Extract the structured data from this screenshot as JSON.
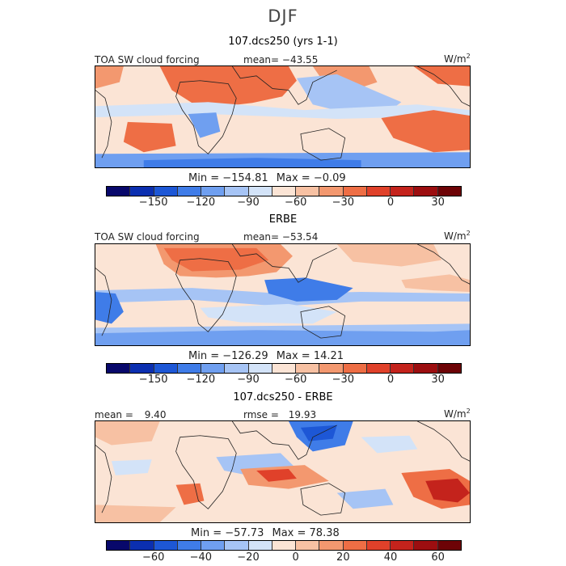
{
  "title": "DJF",
  "colors": {
    "scale": [
      "#08086b",
      "#0b2fb0",
      "#1d57d6",
      "#3f7ce8",
      "#6f9ff0",
      "#a6c4f5",
      "#d3e3f8",
      "#fbe4d5",
      "#f7c1a3",
      "#f3986f",
      "#ee6e45",
      "#e0412a",
      "#c4231c",
      "#9c0e10",
      "#6d0306"
    ],
    "coast": "#222222"
  },
  "panels": [
    {
      "title": "107.dcs250 (yrs 1-1)",
      "left_label": "TOA SW cloud forcing",
      "mean_label": "mean=",
      "mean_value": "-43.55",
      "units": "W/m",
      "units_exp": "2",
      "min_label": "Min =",
      "min_value": "-154.81",
      "max_label": "Max =",
      "max_value": "-0.09",
      "ticks": [
        "-150",
        "-120",
        "-90",
        "-60",
        "-30",
        "0",
        "30"
      ]
    },
    {
      "title": "ERBE",
      "left_label": "TOA SW cloud forcing",
      "mean_label": "mean=",
      "mean_value": "-53.54",
      "units": "W/m",
      "units_exp": "2",
      "min_label": "Min =",
      "min_value": "-126.29",
      "max_label": "Max =",
      "max_value": "14.21",
      "ticks": [
        "-150",
        "-120",
        "-90",
        "-60",
        "-30",
        "0",
        "30"
      ]
    },
    {
      "title": "107.dcs250 - ERBE",
      "left_label": "mean =",
      "left_value": "9.40",
      "mean_label": "rmse =",
      "mean_value": "19.93",
      "units": "W/m",
      "units_exp": "2",
      "min_label": "Min =",
      "min_value": "-57.73",
      "max_label": "Max =",
      "max_value": "78.38",
      "ticks": [
        "-60",
        "-40",
        "-20",
        "0",
        "20",
        "40",
        "60"
      ]
    }
  ],
  "chart_data": [
    {
      "type": "heatmap",
      "title": "107.dcs250 (yrs 1-1)",
      "field": "TOA SW cloud forcing",
      "units": "W/m2",
      "mean": -43.55,
      "min": -154.81,
      "max": -0.09,
      "colorbar_levels": [
        -150,
        -120,
        -90,
        -60,
        -30,
        0,
        30
      ]
    },
    {
      "type": "heatmap",
      "title": "ERBE",
      "field": "TOA SW cloud forcing",
      "units": "W/m2",
      "mean": -53.54,
      "min": -126.29,
      "max": 14.21,
      "colorbar_levels": [
        -150,
        -120,
        -90,
        -60,
        -30,
        0,
        30
      ]
    },
    {
      "type": "heatmap",
      "title": "107.dcs250 - ERBE",
      "units": "W/m2",
      "mean": 9.4,
      "rmse": 19.93,
      "min": -57.73,
      "max": 78.38,
      "colorbar_levels": [
        -60,
        -40,
        -20,
        0,
        20,
        40,
        60
      ]
    }
  ]
}
